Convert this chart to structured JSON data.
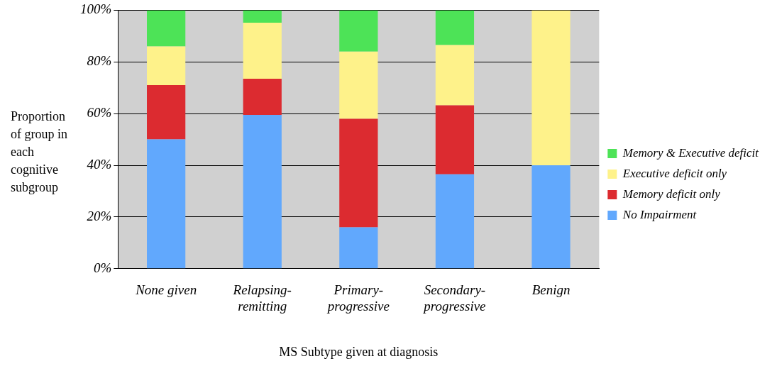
{
  "chart_data": {
    "type": "bar",
    "stacked": true,
    "xlabel": "MS Subtype given at diagnosis",
    "ylabel": "Proportion of group in each cognitive subgroup",
    "categories": [
      "None given",
      "Relapsing-remitting",
      "Primary-progressive",
      "Secondary-progressive",
      "Benign"
    ],
    "series": [
      {
        "name": "No Impairment",
        "color": "#61a8fd",
        "values": [
          50,
          59.5,
          16,
          36.5,
          40
        ]
      },
      {
        "name": "Memory deficit only",
        "color": "#dc2b30",
        "values": [
          21,
          14,
          42,
          26.7,
          0
        ]
      },
      {
        "name": "Executive deficit only",
        "color": "#fef28a",
        "values": [
          15,
          21.7,
          26,
          23.3,
          60
        ]
      },
      {
        "name": "Memory & Executive deficit",
        "color": "#4de357",
        "values": [
          14,
          4.8,
          16,
          13.5,
          0
        ]
      }
    ],
    "ylim": [
      0,
      100
    ],
    "yticks": [
      {
        "value": 0,
        "label": "0%"
      },
      {
        "value": 20,
        "label": "20%"
      },
      {
        "value": 40,
        "label": "40%"
      },
      {
        "value": 60,
        "label": "60%"
      },
      {
        "value": 80,
        "label": "80%"
      },
      {
        "value": 100,
        "label": "100%"
      }
    ],
    "grid": "y",
    "legend": "right"
  }
}
